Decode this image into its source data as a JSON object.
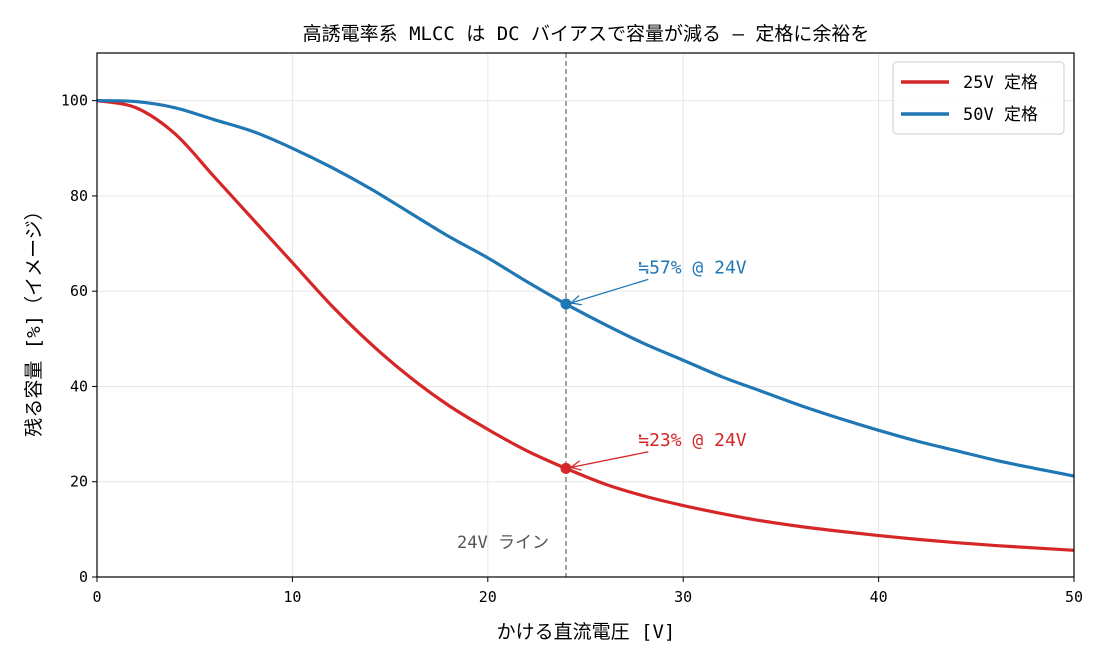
{
  "chart_data": {
    "type": "line",
    "title": "高誘電率系 MLCC は DC バイアスで容量が減る — 定格に余裕を",
    "xlabel": "かける直流電圧 [V]",
    "ylabel": "残る容量 [%]（イメージ）",
    "xlim": [
      0,
      50
    ],
    "ylim": [
      0,
      110
    ],
    "xticks": [
      0,
      10,
      20,
      30,
      40,
      50
    ],
    "yticks": [
      0,
      20,
      40,
      60,
      80,
      100
    ],
    "grid": true,
    "legend_position": "top-right",
    "series": [
      {
        "name": "25V 定格",
        "color": "#d62728",
        "x": [
          0,
          2,
          4,
          6,
          8,
          10,
          12,
          14,
          16,
          18,
          20,
          22,
          24,
          26,
          28,
          30,
          32,
          34,
          36,
          38,
          40,
          42,
          44,
          46,
          48,
          50
        ],
        "y": [
          100,
          98.5,
          93,
          84,
          75,
          66,
          57,
          49,
          42,
          36,
          31,
          26.5,
          22.8,
          19.5,
          17,
          15,
          13.3,
          11.8,
          10.6,
          9.6,
          8.7,
          7.9,
          7.2,
          6.6,
          6.1,
          5.6
        ]
      },
      {
        "name": "50V 定格",
        "color": "#1f77b4",
        "x": [
          0,
          2,
          4,
          6,
          8,
          10,
          12,
          14,
          16,
          18,
          20,
          22,
          24,
          26,
          28,
          30,
          32,
          34,
          36,
          38,
          40,
          42,
          44,
          46,
          48,
          50
        ],
        "y": [
          100,
          99.8,
          98.5,
          96,
          93.5,
          90,
          86,
          81.5,
          76.5,
          71.5,
          67,
          62,
          57.3,
          53,
          49,
          45.5,
          42,
          39,
          36,
          33.3,
          30.8,
          28.5,
          26.5,
          24.5,
          22.8,
          21.2
        ]
      }
    ],
    "vline": {
      "x": 24,
      "label": "24V ライン",
      "color": "#808080"
    },
    "annotations": [
      {
        "text": "≒57% @ 24V",
        "x": 24,
        "y": 57.3,
        "text_x": 27.7,
        "text_y": 65,
        "color": "#1f77b4"
      },
      {
        "text": "≒23% @ 24V",
        "x": 24,
        "y": 22.8,
        "text_x": 27.7,
        "text_y": 28.8,
        "color": "#d62728"
      }
    ]
  }
}
